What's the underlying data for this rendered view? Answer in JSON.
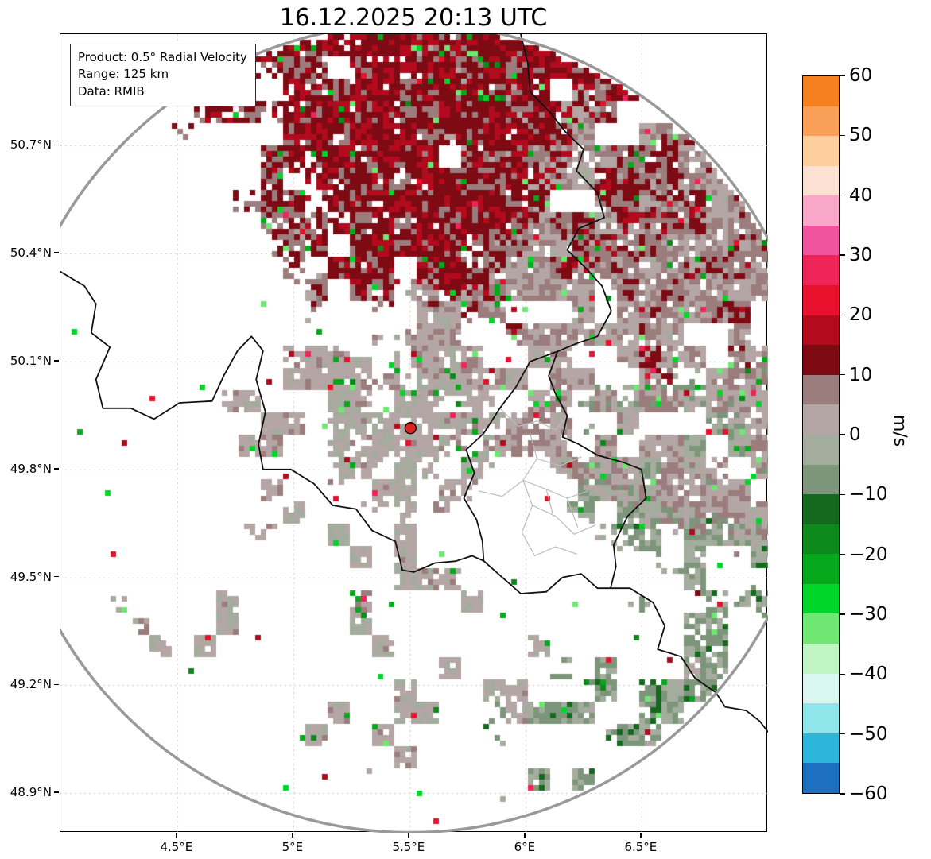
{
  "title": "16.12.2025 20:13 UTC",
  "info_box": {
    "product_line": "Product: 0.5° Radial Velocity",
    "range_line": "Range: 125 km",
    "data_line": "Data: RMIB"
  },
  "chart_data": {
    "type": "heatmap",
    "subtype": "doppler-radar-radial-velocity-ppi",
    "title": "16.12.2025 20:13 UTC",
    "product": "0.5° Radial Velocity",
    "elevation_deg": 0.5,
    "range_km": 125,
    "data_source": "RMIB",
    "units": "m/s",
    "radar_site": {
      "lon_deg_e": 5.505,
      "lat_deg_n": 49.915
    },
    "x_axis": {
      "ticks": [
        "4.5°E",
        "5°E",
        "5.5°E",
        "6°E",
        "6.5°E"
      ],
      "tick_values": [
        4.5,
        5.0,
        5.5,
        6.0,
        6.5
      ],
      "range": [
        3.997,
        7.045
      ]
    },
    "y_axis": {
      "ticks": [
        "50.7°N",
        "50.4°N",
        "50.1°N",
        "49.8°N",
        "49.5°N",
        "49.2°N",
        "48.9°N"
      ],
      "tick_values": [
        50.7,
        50.4,
        50.1,
        49.8,
        49.5,
        49.2,
        48.9
      ],
      "range": [
        48.79,
        51.01
      ]
    },
    "grid": true,
    "colorbar": {
      "label": "m/s",
      "min": -60,
      "max": 60,
      "ticks": [
        {
          "value": 60,
          "label": "60"
        },
        {
          "value": 50,
          "label": "50"
        },
        {
          "value": 40,
          "label": "40"
        },
        {
          "value": 30,
          "label": "30"
        },
        {
          "value": 20,
          "label": "20"
        },
        {
          "value": 10,
          "label": "10"
        },
        {
          "value": 0,
          "label": "0"
        },
        {
          "value": -10,
          "label": "−10"
        },
        {
          "value": -20,
          "label": "−20"
        },
        {
          "value": -30,
          "label": "−30"
        },
        {
          "value": -40,
          "label": "−40"
        },
        {
          "value": -50,
          "label": "−50"
        },
        {
          "value": -60,
          "label": "−60"
        }
      ],
      "segments": [
        {
          "from": 55,
          "to": 60,
          "color": "#f5801f"
        },
        {
          "from": 50,
          "to": 55,
          "color": "#fa9f57"
        },
        {
          "from": 45,
          "to": 50,
          "color": "#fdcf9e"
        },
        {
          "from": 40,
          "to": 45,
          "color": "#fce0d2"
        },
        {
          "from": 35,
          "to": 40,
          "color": "#f9a7c8"
        },
        {
          "from": 30,
          "to": 35,
          "color": "#f0549e"
        },
        {
          "from": 25,
          "to": 30,
          "color": "#ef2458"
        },
        {
          "from": 20,
          "to": 25,
          "color": "#e8112d"
        },
        {
          "from": 15,
          "to": 20,
          "color": "#b40a1e"
        },
        {
          "from": 10,
          "to": 15,
          "color": "#7e0a14"
        },
        {
          "from": 5,
          "to": 10,
          "color": "#9b7d7d"
        },
        {
          "from": 0,
          "to": 5,
          "color": "#b3a6a4"
        },
        {
          "from": -5,
          "to": 0,
          "color": "#a3ac9d"
        },
        {
          "from": -10,
          "to": -5,
          "color": "#7d957a"
        },
        {
          "from": -15,
          "to": -10,
          "color": "#15691f"
        },
        {
          "from": -20,
          "to": -15,
          "color": "#0e8a1d"
        },
        {
          "from": -25,
          "to": -20,
          "color": "#06a81c"
        },
        {
          "from": -30,
          "to": -25,
          "color": "#00d62a"
        },
        {
          "from": -35,
          "to": -30,
          "color": "#6fe873"
        },
        {
          "from": -40,
          "to": -35,
          "color": "#c2f5c4"
        },
        {
          "from": -45,
          "to": -40,
          "color": "#d9f7ef"
        },
        {
          "from": -50,
          "to": -45,
          "color": "#8fe6ea"
        },
        {
          "from": -55,
          "to": -50,
          "color": "#2cb6dd"
        },
        {
          "from": -60,
          "to": -55,
          "color": "#1d6fc0"
        }
      ]
    },
    "velocity_regions": [
      {
        "name": "north-outbound-core",
        "az_from": 338,
        "az_to": 28,
        "km_from": 46,
        "km_to": 125,
        "coverage": 0.88,
        "v_mean": 13,
        "v_spread": 4
      },
      {
        "name": "north-outbound-fringe",
        "az_from": 324,
        "az_to": 48,
        "km_from": 40,
        "km_to": 125,
        "coverage": 0.5,
        "v_mean": 11,
        "v_spread": 5
      },
      {
        "name": "northeast-far-outbound",
        "az_from": 40,
        "az_to": 78,
        "km_from": 75,
        "km_to": 125,
        "coverage": 0.5,
        "v_mean": 9,
        "v_spread": 5
      },
      {
        "name": "northeast-weak-outbound",
        "az_from": 0,
        "az_to": 108,
        "km_from": 17,
        "km_to": 125,
        "coverage": 0.7,
        "v_mean": 4,
        "v_spread": 3.5
      },
      {
        "name": "east-weak-inbound",
        "az_from": 80,
        "az_to": 118,
        "km_from": 55,
        "km_to": 125,
        "coverage": 0.55,
        "v_mean": -5,
        "v_spread": 4.5
      },
      {
        "name": "southeast-inbound-far",
        "az_from": 118,
        "az_to": 145,
        "km_from": 95,
        "km_to": 125,
        "coverage": 0.4,
        "v_mean": -6,
        "v_spread": 5
      },
      {
        "name": "southeast-inbound-edge",
        "az_from": 128,
        "az_to": 163,
        "km_from": 88,
        "km_to": 125,
        "coverage": 0.32,
        "v_mean": -7,
        "v_spread": 5
      },
      {
        "name": "radar-core-mixed",
        "az_from": 0,
        "az_to": 360,
        "km_from": 0,
        "km_to": 9,
        "coverage": 0.92,
        "v_mean": 1,
        "v_spread": 3
      },
      {
        "name": "radar-near-ring",
        "az_from": 0,
        "az_to": 360,
        "km_from": 9,
        "km_to": 27,
        "coverage": 0.5,
        "v_mean": 1.5,
        "v_spread": 3.5,
        "streaky": true
      },
      {
        "name": "west-patches",
        "az_from": 235,
        "az_to": 318,
        "km_from": 15,
        "km_to": 58,
        "coverage": 0.3,
        "v_mean": 2.5,
        "v_spread": 3
      },
      {
        "name": "northwest-sparse",
        "az_from": 300,
        "az_to": 340,
        "km_from": 18,
        "km_to": 55,
        "coverage": 0.22,
        "v_mean": 3,
        "v_spread": 3
      },
      {
        "name": "south-scattered",
        "az_from": 148,
        "az_to": 240,
        "km_from": 22,
        "km_to": 105,
        "coverage": 0.15,
        "v_mean": 1.5,
        "v_spread": 4
      }
    ],
    "map": {
      "colors": {
        "country_border": "#111111",
        "admin_border": "#bdbdbd",
        "range_ring": "#999999",
        "radar_marker": "#dd2222",
        "grid": "#c9c9c9"
      },
      "country_borders": [
        [
          [
            3.997,
            50.35
          ],
          [
            4.1,
            50.31
          ],
          [
            4.15,
            50.26
          ],
          [
            4.13,
            50.18
          ],
          [
            4.21,
            50.14
          ],
          [
            4.15,
            50.05
          ],
          [
            4.18,
            49.97
          ],
          [
            4.3,
            49.97
          ],
          [
            4.4,
            49.94
          ],
          [
            4.51,
            49.985
          ],
          [
            4.65,
            49.99
          ],
          [
            4.7,
            50.06
          ],
          [
            4.76,
            50.13
          ],
          [
            4.82,
            50.17
          ],
          [
            4.87,
            50.13
          ],
          [
            4.84,
            50.05
          ],
          [
            4.88,
            49.96
          ],
          [
            4.85,
            49.87
          ],
          [
            4.87,
            49.8
          ],
          [
            4.99,
            49.8
          ],
          [
            5.09,
            49.76
          ],
          [
            5.17,
            49.7
          ],
          [
            5.27,
            49.69
          ],
          [
            5.34,
            49.63
          ],
          [
            5.44,
            49.6
          ],
          [
            5.47,
            49.52
          ],
          [
            5.52,
            49.515
          ],
          [
            5.61,
            49.54
          ],
          [
            5.7,
            49.545
          ],
          [
            5.77,
            49.56
          ],
          [
            5.82,
            49.546
          ]
        ],
        [
          [
            5.98,
            51.01
          ],
          [
            6.01,
            50.93
          ],
          [
            6.02,
            50.85
          ],
          [
            6.11,
            50.79
          ],
          [
            6.17,
            50.74
          ],
          [
            6.25,
            50.69
          ],
          [
            6.22,
            50.63
          ],
          [
            6.31,
            50.57
          ],
          [
            6.34,
            50.5
          ],
          [
            6.23,
            50.47
          ],
          [
            6.18,
            50.41
          ],
          [
            6.26,
            50.36
          ],
          [
            6.33,
            50.31
          ],
          [
            6.37,
            50.24
          ],
          [
            6.31,
            50.17
          ],
          [
            6.22,
            50.15
          ],
          [
            6.138,
            50.128
          ]
        ],
        [
          [
            6.138,
            50.128
          ],
          [
            6.1,
            50.06
          ],
          [
            6.13,
            50.01
          ],
          [
            6.18,
            49.95
          ],
          [
            6.16,
            49.89
          ],
          [
            6.23,
            49.87
          ],
          [
            6.31,
            49.84
          ],
          [
            6.42,
            49.82
          ],
          [
            6.5,
            49.8
          ],
          [
            6.52,
            49.72
          ],
          [
            6.44,
            49.67
          ],
          [
            6.38,
            49.59
          ],
          [
            6.39,
            49.53
          ],
          [
            6.367,
            49.47
          ]
        ],
        [
          [
            6.138,
            50.128
          ],
          [
            6.02,
            50.1
          ],
          [
            5.96,
            50.03
          ],
          [
            5.89,
            49.97
          ],
          [
            5.82,
            49.9
          ],
          [
            5.745,
            49.855
          ],
          [
            5.78,
            49.79
          ],
          [
            5.735,
            49.72
          ],
          [
            5.79,
            49.66
          ],
          [
            5.815,
            49.6
          ],
          [
            5.82,
            49.546
          ]
        ],
        [
          [
            5.82,
            49.546
          ],
          [
            5.9,
            49.5
          ],
          [
            5.98,
            49.455
          ],
          [
            6.09,
            49.46
          ],
          [
            6.16,
            49.5
          ],
          [
            6.24,
            49.51
          ],
          [
            6.31,
            49.47
          ],
          [
            6.367,
            49.47
          ]
        ],
        [
          [
            6.367,
            49.47
          ],
          [
            6.45,
            49.47
          ],
          [
            6.55,
            49.43
          ],
          [
            6.6,
            49.365
          ],
          [
            6.57,
            49.3
          ],
          [
            6.67,
            49.28
          ],
          [
            6.73,
            49.22
          ],
          [
            6.82,
            49.18
          ],
          [
            6.86,
            49.14
          ],
          [
            6.95,
            49.13
          ],
          [
            7.01,
            49.1
          ],
          [
            7.045,
            49.07
          ]
        ]
      ],
      "admin_borders": [
        [
          [
            5.89,
            49.97
          ],
          [
            5.97,
            49.92
          ],
          [
            6.05,
            49.935
          ],
          [
            6.13,
            49.91
          ],
          [
            6.18,
            49.95
          ]
        ],
        [
          [
            6.02,
            49.9
          ],
          [
            6.05,
            49.83
          ],
          [
            5.99,
            49.77
          ],
          [
            6.03,
            49.7
          ],
          [
            5.985,
            49.625
          ],
          [
            6.04,
            49.56
          ]
        ],
        [
          [
            5.8,
            49.74
          ],
          [
            5.9,
            49.725
          ],
          [
            5.99,
            49.77
          ]
        ],
        [
          [
            6.05,
            49.83
          ],
          [
            6.15,
            49.81
          ],
          [
            6.24,
            49.835
          ]
        ],
        [
          [
            5.99,
            49.77
          ],
          [
            6.09,
            49.745
          ],
          [
            6.18,
            49.72
          ],
          [
            6.27,
            49.74
          ]
        ],
        [
          [
            6.03,
            49.7
          ],
          [
            6.13,
            49.67
          ],
          [
            6.21,
            49.62
          ],
          [
            6.3,
            49.645
          ]
        ],
        [
          [
            6.09,
            49.745
          ],
          [
            6.12,
            49.67
          ]
        ],
        [
          [
            6.04,
            49.56
          ],
          [
            6.13,
            49.585
          ],
          [
            6.22,
            49.565
          ]
        ],
        [
          [
            6.18,
            49.72
          ],
          [
            6.225,
            49.64
          ]
        ]
      ]
    }
  }
}
